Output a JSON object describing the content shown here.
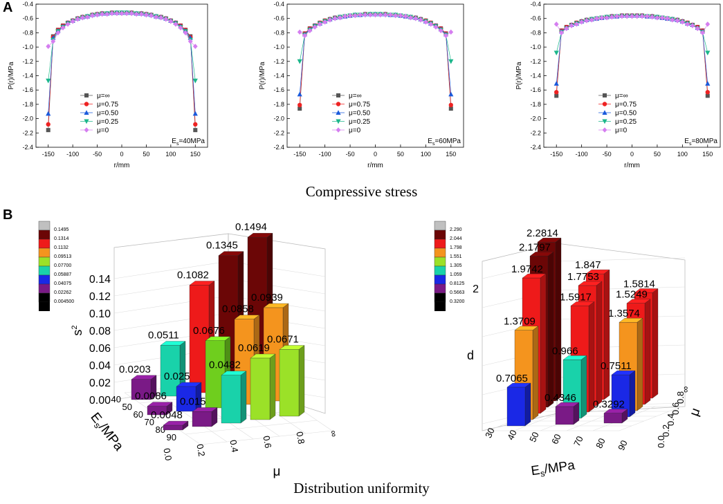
{
  "panel_a": {
    "label": "A",
    "caption": "Compressive stress",
    "ylabel": "P(r)/MPa",
    "xlabel": "r/mm",
    "yticks": [
      "-0.4",
      "-0.6",
      "-0.8",
      "-1.0",
      "-1.2",
      "-1.4",
      "-1.6",
      "-1.8",
      "-2.0",
      "-2.2",
      "-2.4"
    ],
    "xticks": [
      "-150",
      "-100",
      "-50",
      "0",
      "50",
      "100",
      "150"
    ]
  },
  "panel_b": {
    "label": "B",
    "caption": "Distribution uniformity"
  },
  "colors": {
    "mu_inf": "#555555",
    "mu_075": "#ee2222",
    "mu_050": "#1a5adc",
    "mu_025": "#1bb68a",
    "mu_0": "#d57ef0"
  },
  "chart_data": [
    {
      "type": "line",
      "title": "Es=40MPa",
      "xlabel": "r/mm",
      "ylabel": "P(r)/MPa",
      "xlim": [
        -175,
        175
      ],
      "ylim": [
        -2.4,
        -0.4
      ],
      "x": [
        -150,
        -140,
        -130,
        -120,
        -110,
        -100,
        -90,
        -80,
        -70,
        -60,
        -50,
        -40,
        -30,
        -20,
        -10,
        0,
        10,
        20,
        30,
        40,
        50,
        60,
        70,
        80,
        90,
        100,
        110,
        120,
        130,
        140,
        150
      ],
      "legend": [
        "μ=∞",
        "μ=0.75",
        "μ=0.50",
        "μ=0.25",
        "μ=0"
      ],
      "legend_position": "bottom-center",
      "series": [
        {
          "name": "μ=∞",
          "values": [
            -2.16,
            -0.85,
            -0.76,
            -0.7,
            -0.66,
            -0.63,
            -0.6,
            -0.58,
            -0.57,
            -0.55,
            -0.54,
            -0.53,
            -0.53,
            -0.52,
            -0.52,
            -0.52,
            -0.52,
            -0.52,
            -0.53,
            -0.53,
            -0.54,
            -0.55,
            -0.57,
            -0.58,
            -0.6,
            -0.63,
            -0.66,
            -0.7,
            -0.76,
            -0.85,
            -2.16
          ]
        },
        {
          "name": "μ=0.75",
          "values": [
            -2.08,
            -0.86,
            -0.76,
            -0.7,
            -0.66,
            -0.63,
            -0.6,
            -0.58,
            -0.57,
            -0.55,
            -0.54,
            -0.53,
            -0.53,
            -0.52,
            -0.52,
            -0.52,
            -0.52,
            -0.52,
            -0.53,
            -0.53,
            -0.54,
            -0.55,
            -0.57,
            -0.58,
            -0.6,
            -0.63,
            -0.66,
            -0.7,
            -0.76,
            -0.86,
            -2.08
          ]
        },
        {
          "name": "μ=0.50",
          "values": [
            -1.93,
            -0.87,
            -0.77,
            -0.71,
            -0.66,
            -0.63,
            -0.6,
            -0.58,
            -0.57,
            -0.55,
            -0.54,
            -0.53,
            -0.53,
            -0.52,
            -0.52,
            -0.52,
            -0.52,
            -0.52,
            -0.53,
            -0.53,
            -0.54,
            -0.55,
            -0.57,
            -0.58,
            -0.6,
            -0.63,
            -0.66,
            -0.71,
            -0.77,
            -0.87,
            -1.93
          ]
        },
        {
          "name": "μ=0.25",
          "values": [
            -1.47,
            -0.9,
            -0.78,
            -0.72,
            -0.67,
            -0.64,
            -0.61,
            -0.59,
            -0.57,
            -0.56,
            -0.55,
            -0.54,
            -0.53,
            -0.53,
            -0.52,
            -0.52,
            -0.52,
            -0.53,
            -0.53,
            -0.54,
            -0.55,
            -0.56,
            -0.57,
            -0.59,
            -0.61,
            -0.64,
            -0.67,
            -0.72,
            -0.78,
            -0.9,
            -1.47
          ]
        },
        {
          "name": "μ=0",
          "values": [
            -0.99,
            -0.92,
            -0.8,
            -0.73,
            -0.68,
            -0.64,
            -0.61,
            -0.59,
            -0.58,
            -0.56,
            -0.55,
            -0.54,
            -0.54,
            -0.53,
            -0.53,
            -0.53,
            -0.53,
            -0.53,
            -0.54,
            -0.54,
            -0.55,
            -0.56,
            -0.58,
            -0.59,
            -0.61,
            -0.64,
            -0.68,
            -0.73,
            -0.8,
            -0.92,
            -0.99
          ]
        }
      ]
    },
    {
      "type": "line",
      "title": "Es=60MPa",
      "xlabel": "r/mm",
      "ylabel": "P(r)/MPa",
      "xlim": [
        -175,
        175
      ],
      "ylim": [
        -2.4,
        -0.4
      ],
      "x": [
        -150,
        -140,
        -130,
        -120,
        -110,
        -100,
        -90,
        -80,
        -70,
        -60,
        -50,
        -40,
        -30,
        -20,
        -10,
        0,
        10,
        20,
        30,
        40,
        50,
        60,
        70,
        80,
        90,
        100,
        110,
        120,
        130,
        140,
        150
      ],
      "legend": [
        "μ=∞",
        "μ=0.75",
        "μ=0.50",
        "μ=0.25",
        "μ=0"
      ],
      "legend_position": "bottom-center",
      "series": [
        {
          "name": "μ=∞",
          "values": [
            -1.86,
            -0.81,
            -0.74,
            -0.7,
            -0.66,
            -0.63,
            -0.61,
            -0.59,
            -0.58,
            -0.57,
            -0.56,
            -0.55,
            -0.55,
            -0.54,
            -0.54,
            -0.54,
            -0.54,
            -0.54,
            -0.55,
            -0.55,
            -0.56,
            -0.57,
            -0.58,
            -0.59,
            -0.61,
            -0.63,
            -0.66,
            -0.7,
            -0.74,
            -0.81,
            -1.86
          ]
        },
        {
          "name": "μ=0.75",
          "values": [
            -1.81,
            -0.81,
            -0.74,
            -0.7,
            -0.66,
            -0.63,
            -0.61,
            -0.59,
            -0.58,
            -0.57,
            -0.56,
            -0.55,
            -0.55,
            -0.54,
            -0.54,
            -0.54,
            -0.54,
            -0.54,
            -0.55,
            -0.55,
            -0.56,
            -0.57,
            -0.58,
            -0.59,
            -0.61,
            -0.63,
            -0.66,
            -0.7,
            -0.74,
            -0.81,
            -1.81
          ]
        },
        {
          "name": "μ=0.50",
          "values": [
            -1.66,
            -0.82,
            -0.75,
            -0.7,
            -0.67,
            -0.64,
            -0.61,
            -0.59,
            -0.58,
            -0.57,
            -0.56,
            -0.55,
            -0.55,
            -0.54,
            -0.54,
            -0.54,
            -0.54,
            -0.54,
            -0.55,
            -0.55,
            -0.56,
            -0.57,
            -0.58,
            -0.59,
            -0.61,
            -0.64,
            -0.67,
            -0.7,
            -0.75,
            -0.82,
            -1.66
          ]
        },
        {
          "name": "μ=0.25",
          "values": [
            -1.2,
            -0.83,
            -0.76,
            -0.71,
            -0.67,
            -0.64,
            -0.62,
            -0.6,
            -0.58,
            -0.57,
            -0.56,
            -0.55,
            -0.55,
            -0.55,
            -0.54,
            -0.54,
            -0.54,
            -0.55,
            -0.55,
            -0.55,
            -0.56,
            -0.57,
            -0.58,
            -0.6,
            -0.62,
            -0.64,
            -0.67,
            -0.71,
            -0.76,
            -0.83,
            -1.2
          ]
        },
        {
          "name": "μ=0",
          "values": [
            -0.79,
            -0.84,
            -0.77,
            -0.72,
            -0.68,
            -0.65,
            -0.62,
            -0.6,
            -0.59,
            -0.57,
            -0.56,
            -0.56,
            -0.55,
            -0.55,
            -0.55,
            -0.55,
            -0.55,
            -0.55,
            -0.55,
            -0.56,
            -0.56,
            -0.57,
            -0.59,
            -0.6,
            -0.62,
            -0.65,
            -0.68,
            -0.72,
            -0.77,
            -0.84,
            -0.79
          ]
        }
      ]
    },
    {
      "type": "line",
      "title": "Es=80MPa",
      "xlabel": "r/mm",
      "ylabel": "P(r)/MPa",
      "xlim": [
        -175,
        175
      ],
      "ylim": [
        -2.4,
        -0.4
      ],
      "x": [
        -150,
        -140,
        -130,
        -120,
        -110,
        -100,
        -90,
        -80,
        -70,
        -60,
        -50,
        -40,
        -30,
        -20,
        -10,
        0,
        10,
        20,
        30,
        40,
        50,
        60,
        70,
        80,
        90,
        100,
        110,
        120,
        130,
        140,
        150
      ],
      "legend": [
        "μ=∞",
        "μ=0.75",
        "μ=0.50",
        "μ=0.25",
        "μ=0"
      ],
      "legend_position": "bottom-center",
      "series": [
        {
          "name": "μ=∞",
          "values": [
            -1.68,
            -0.77,
            -0.72,
            -0.69,
            -0.66,
            -0.64,
            -0.62,
            -0.61,
            -0.6,
            -0.59,
            -0.58,
            -0.57,
            -0.57,
            -0.56,
            -0.56,
            -0.56,
            -0.56,
            -0.56,
            -0.57,
            -0.57,
            -0.58,
            -0.59,
            -0.6,
            -0.61,
            -0.62,
            -0.64,
            -0.66,
            -0.69,
            -0.72,
            -0.77,
            -1.68
          ]
        },
        {
          "name": "μ=0.75",
          "values": [
            -1.63,
            -0.77,
            -0.72,
            -0.69,
            -0.66,
            -0.64,
            -0.62,
            -0.61,
            -0.6,
            -0.59,
            -0.58,
            -0.57,
            -0.57,
            -0.56,
            -0.56,
            -0.56,
            -0.56,
            -0.56,
            -0.57,
            -0.57,
            -0.58,
            -0.59,
            -0.6,
            -0.61,
            -0.62,
            -0.64,
            -0.66,
            -0.69,
            -0.72,
            -0.77,
            -1.63
          ]
        },
        {
          "name": "μ=0.50",
          "values": [
            -1.51,
            -0.78,
            -0.73,
            -0.69,
            -0.67,
            -0.64,
            -0.62,
            -0.61,
            -0.6,
            -0.59,
            -0.58,
            -0.57,
            -0.57,
            -0.56,
            -0.56,
            -0.56,
            -0.56,
            -0.56,
            -0.57,
            -0.57,
            -0.58,
            -0.59,
            -0.6,
            -0.61,
            -0.62,
            -0.64,
            -0.67,
            -0.69,
            -0.73,
            -0.78,
            -1.51
          ]
        },
        {
          "name": "μ=0.25",
          "values": [
            -1.08,
            -0.79,
            -0.74,
            -0.7,
            -0.67,
            -0.65,
            -0.63,
            -0.61,
            -0.6,
            -0.59,
            -0.58,
            -0.58,
            -0.57,
            -0.57,
            -0.57,
            -0.57,
            -0.57,
            -0.57,
            -0.57,
            -0.58,
            -0.58,
            -0.59,
            -0.6,
            -0.61,
            -0.63,
            -0.65,
            -0.67,
            -0.7,
            -0.74,
            -0.79,
            -1.08
          ]
        },
        {
          "name": "μ=0",
          "values": [
            -0.68,
            -0.8,
            -0.74,
            -0.7,
            -0.68,
            -0.65,
            -0.63,
            -0.62,
            -0.6,
            -0.59,
            -0.59,
            -0.58,
            -0.57,
            -0.57,
            -0.57,
            -0.57,
            -0.57,
            -0.57,
            -0.57,
            -0.58,
            -0.59,
            -0.59,
            -0.6,
            -0.62,
            -0.63,
            -0.65,
            -0.68,
            -0.7,
            -0.74,
            -0.8,
            -0.68
          ]
        }
      ]
    },
    {
      "type": "bar3d",
      "title": "",
      "zlabel": "s",
      "zlabel_sup": "2",
      "xlabel": "μ",
      "ylabel_main": "E",
      "ylabel_sub": "s",
      "ylabel_tail": "/MPa",
      "zticks": [
        "0.00",
        "0.02",
        "0.04",
        "0.06",
        "0.08",
        "0.10",
        "0.12",
        "0.14"
      ],
      "zlim": [
        0,
        0.16
      ],
      "mu_ticks": [
        "0.0",
        "0.2",
        "0.4",
        "0.6",
        "0.8",
        "∞"
      ],
      "es_ticks": [
        "40",
        "50",
        "60",
        "70",
        "80",
        "90"
      ],
      "colorbar": [
        "0.1495",
        "0.1314",
        "0.1132",
        "0.09513",
        "0.07700",
        "0.05887",
        "0.04075",
        "0.02262",
        "0.004500"
      ],
      "colorbar_colors": [
        "#c0c0c0",
        "#6b0606",
        "#ee1a1a",
        "#f4941e",
        "#9be128",
        "#19d2aa",
        "#1a28e6",
        "#7a1a86",
        "#000000"
      ],
      "bars": [
        {
          "es": 40,
          "mu": 0.0,
          "value": 0.0203,
          "label": "0.0203"
        },
        {
          "es": 60,
          "mu": 0.0,
          "value": 0.0086,
          "label": "0.0086"
        },
        {
          "es": 80,
          "mu": 0.0,
          "value": 0.0048,
          "label": "0.0048"
        },
        {
          "es": 40,
          "mu": 0.25,
          "value": 0.0511,
          "label": "0.0511"
        },
        {
          "es": 60,
          "mu": 0.25,
          "value": 0.025,
          "label": "0.025"
        },
        {
          "es": 80,
          "mu": 0.25,
          "value": 0.015,
          "label": "0.015"
        },
        {
          "es": 40,
          "mu": 0.5,
          "value": 0.1082,
          "label": "0.1082"
        },
        {
          "es": 60,
          "mu": 0.5,
          "value": 0.0676,
          "label": "0.0676"
        },
        {
          "es": 80,
          "mu": 0.5,
          "value": 0.0482,
          "label": "0.0482"
        },
        {
          "es": 40,
          "mu": 0.75,
          "value": 0.1345,
          "label": "0.1345"
        },
        {
          "es": 60,
          "mu": 0.75,
          "value": 0.0858,
          "label": "0.0858"
        },
        {
          "es": 80,
          "mu": 0.75,
          "value": 0.0619,
          "label": "0.0619"
        },
        {
          "es": 40,
          "mu": 1.0,
          "value": 0.1494,
          "label": "0.1494"
        },
        {
          "es": 60,
          "mu": 1.0,
          "value": 0.0939,
          "label": "0.0939"
        },
        {
          "es": 80,
          "mu": 1.0,
          "value": 0.0671,
          "label": "0.0671"
        }
      ]
    },
    {
      "type": "bar3d",
      "title": "",
      "zlabel": "d",
      "xlabel_main": "E",
      "xlabel_sub": "s",
      "xlabel_tail": "/MPa",
      "ylabel": "μ",
      "zticks": [
        "2"
      ],
      "zlim": [
        0.2,
        2.4
      ],
      "es_ticks": [
        "30",
        "40",
        "50",
        "60",
        "70",
        "80",
        "90"
      ],
      "mu_ticks": [
        "0.0",
        "0.2",
        "0.4",
        "0.6",
        "0.8",
        "∞"
      ],
      "colorbar": [
        "2.290",
        "2.044",
        "1.798",
        "1.551",
        "1.305",
        "1.059",
        "0.8125",
        "0.5663",
        "0.3200"
      ],
      "colorbar_colors": [
        "#c0c0c0",
        "#6b0606",
        "#ee1a1a",
        "#f4941e",
        "#9be128",
        "#19d2aa",
        "#1a28e6",
        "#7a1a86",
        "#000000"
      ],
      "bars": [
        {
          "es": 40,
          "mu": 0.0,
          "value": 0.7065,
          "label": "0.7065"
        },
        {
          "es": 40,
          "mu": 0.25,
          "value": 1.3709,
          "label": "1.3709"
        },
        {
          "es": 40,
          "mu": 0.5,
          "value": 1.9742,
          "label": "1.9742"
        },
        {
          "es": 40,
          "mu": 0.75,
          "value": 2.1797,
          "label": "2.1797"
        },
        {
          "es": 40,
          "mu": 1.0,
          "value": 2.2814,
          "label": "2.2814"
        },
        {
          "es": 60,
          "mu": 0.0,
          "value": 0.4346,
          "label": "0.4346"
        },
        {
          "es": 60,
          "mu": 0.25,
          "value": 0.966,
          "label": "0.966"
        },
        {
          "es": 60,
          "mu": 0.5,
          "value": 1.5917,
          "label": "1.5917"
        },
        {
          "es": 60,
          "mu": 0.75,
          "value": 1.7753,
          "label": "1.7753"
        },
        {
          "es": 60,
          "mu": 1.0,
          "value": 1.847,
          "label": "1.847"
        },
        {
          "es": 80,
          "mu": 0.0,
          "value": 0.3292,
          "label": "0.3292"
        },
        {
          "es": 80,
          "mu": 0.25,
          "value": 0.7511,
          "label": "0.7511"
        },
        {
          "es": 80,
          "mu": 0.5,
          "value": 1.3574,
          "label": "1.3574"
        },
        {
          "es": 80,
          "mu": 0.75,
          "value": 1.5249,
          "label": "1.5249"
        },
        {
          "es": 80,
          "mu": 1.0,
          "value": 1.5814,
          "label": "1.5814"
        }
      ]
    }
  ]
}
